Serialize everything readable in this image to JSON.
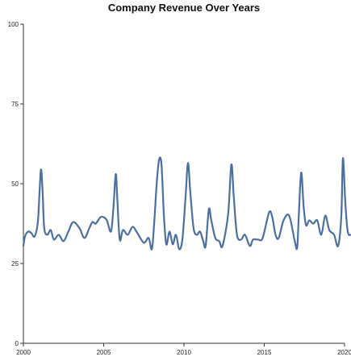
{
  "chart_data": {
    "type": "line",
    "title": "Company Revenue Over Years",
    "xlabel": "",
    "ylabel": "",
    "xlim": [
      2000,
      2020
    ],
    "ylim": [
      0,
      100
    ],
    "x_ticks": [
      2000,
      2005,
      2010,
      2015,
      2020
    ],
    "y_ticks": [
      0,
      25,
      50,
      75,
      100
    ],
    "grid": false,
    "legend": "none",
    "series": [
      {
        "color": "#4a6fa0",
        "points": [
          [
            2000.0,
            30.5
          ],
          [
            2000.1,
            33.5
          ],
          [
            2000.3,
            35.0
          ],
          [
            2000.5,
            34.5
          ],
          [
            2000.7,
            33.5
          ],
          [
            2000.9,
            38.0
          ],
          [
            2001.0,
            47.0
          ],
          [
            2001.1,
            54.5
          ],
          [
            2001.2,
            47.0
          ],
          [
            2001.3,
            36.0
          ],
          [
            2001.5,
            34.0
          ],
          [
            2001.7,
            35.5
          ],
          [
            2001.9,
            32.5
          ],
          [
            2002.2,
            34.0
          ],
          [
            2002.5,
            32.0
          ],
          [
            2002.8,
            35.0
          ],
          [
            2003.1,
            38.0
          ],
          [
            2003.5,
            36.0
          ],
          [
            2003.8,
            33.0
          ],
          [
            2004.1,
            36.0
          ],
          [
            2004.3,
            38.0
          ],
          [
            2004.5,
            37.5
          ],
          [
            2004.8,
            39.5
          ],
          [
            2005.0,
            39.5
          ],
          [
            2005.2,
            38.5
          ],
          [
            2005.45,
            35.0
          ],
          [
            2005.6,
            42.0
          ],
          [
            2005.75,
            53.0
          ],
          [
            2005.85,
            45.0
          ],
          [
            2006.0,
            32.5
          ],
          [
            2006.2,
            35.5
          ],
          [
            2006.5,
            34.0
          ],
          [
            2006.8,
            36.5
          ],
          [
            2007.1,
            34.5
          ],
          [
            2007.5,
            31.5
          ],
          [
            2007.8,
            33.0
          ],
          [
            2008.0,
            29.5
          ],
          [
            2008.15,
            38.0
          ],
          [
            2008.3,
            50.0
          ],
          [
            2008.45,
            57.5
          ],
          [
            2008.6,
            56.0
          ],
          [
            2008.75,
            40.0
          ],
          [
            2008.9,
            31.0
          ],
          [
            2009.1,
            35.0
          ],
          [
            2009.3,
            31.0
          ],
          [
            2009.5,
            34.0
          ],
          [
            2009.7,
            29.5
          ],
          [
            2009.9,
            32.5
          ],
          [
            2010.1,
            46.0
          ],
          [
            2010.25,
            56.5
          ],
          [
            2010.4,
            47.0
          ],
          [
            2010.6,
            36.0
          ],
          [
            2010.8,
            34.0
          ],
          [
            2011.0,
            35.0
          ],
          [
            2011.2,
            32.0
          ],
          [
            2011.35,
            30.5
          ],
          [
            2011.55,
            42.0
          ],
          [
            2011.7,
            38.5
          ],
          [
            2011.95,
            33.0
          ],
          [
            2012.2,
            32.0
          ],
          [
            2012.4,
            30.5
          ],
          [
            2012.75,
            40.5
          ],
          [
            2012.95,
            56.0
          ],
          [
            2013.1,
            46.0
          ],
          [
            2013.3,
            34.0
          ],
          [
            2013.55,
            32.5
          ],
          [
            2013.8,
            34.0
          ],
          [
            2014.1,
            30.5
          ],
          [
            2014.3,
            32.5
          ],
          [
            2014.6,
            32.5
          ],
          [
            2014.9,
            33.0
          ],
          [
            2015.3,
            41.0
          ],
          [
            2015.5,
            39.5
          ],
          [
            2015.7,
            34.0
          ],
          [
            2015.9,
            33.0
          ],
          [
            2016.2,
            38.5
          ],
          [
            2016.55,
            40.0
          ],
          [
            2016.9,
            32.0
          ],
          [
            2017.05,
            30.0
          ],
          [
            2017.15,
            40.0
          ],
          [
            2017.3,
            53.5
          ],
          [
            2017.45,
            43.0
          ],
          [
            2017.6,
            37.0
          ],
          [
            2017.8,
            38.5
          ],
          [
            2018.05,
            37.5
          ],
          [
            2018.3,
            38.5
          ],
          [
            2018.55,
            34.0
          ],
          [
            2018.8,
            40.0
          ],
          [
            2019.05,
            35.5
          ],
          [
            2019.35,
            34.0
          ],
          [
            2019.6,
            30.5
          ],
          [
            2019.8,
            40.0
          ],
          [
            2019.9,
            58.0
          ],
          [
            2020.05,
            44.0
          ],
          [
            2020.2,
            35.0
          ],
          [
            2020.4,
            34.0
          ],
          [
            2020.6,
            34.5
          ]
        ]
      }
    ]
  }
}
